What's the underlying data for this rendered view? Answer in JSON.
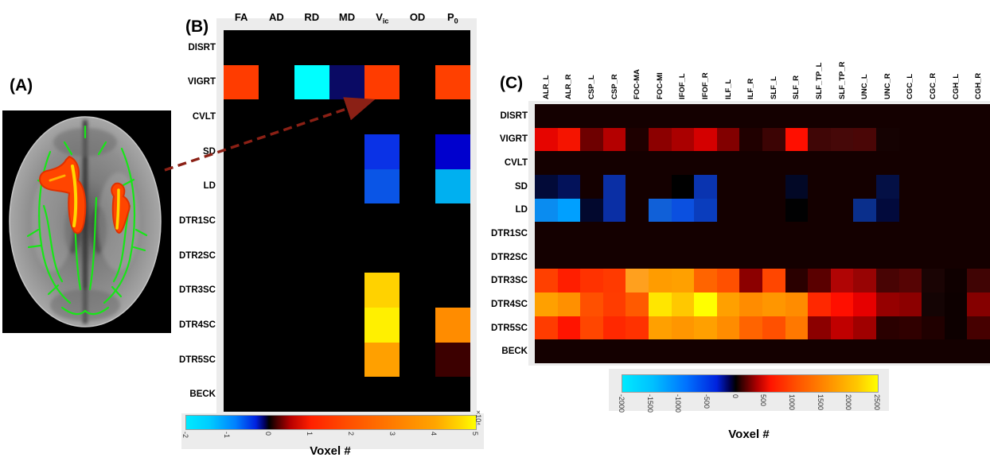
{
  "panels": {
    "a": {
      "label": "(A)"
    },
    "b": {
      "label": "(B)"
    },
    "c": {
      "label": "(C)"
    }
  },
  "annotation_arrow": {
    "color": "#8b2015",
    "style": "dashed"
  },
  "chart_data": [
    {
      "id": "B",
      "type": "heatmap",
      "columns": [
        "FA",
        "AD",
        "RD",
        "MD",
        "Vic",
        "OD",
        "P0"
      ],
      "column_labels_rich": [
        {
          "t": "FA"
        },
        {
          "t": "AD"
        },
        {
          "t": "RD"
        },
        {
          "t": "MD"
        },
        {
          "t": "V",
          "sub": "ic"
        },
        {
          "t": "OD"
        },
        {
          "t": "P",
          "sub": "0"
        }
      ],
      "rows": [
        "DISRT",
        "VIGRT",
        "CVLT",
        "SD",
        "LD",
        "DTR1SC",
        "DTR2SC",
        "DTR3SC",
        "DTR4SC",
        "DTR5SC",
        "BECK"
      ],
      "values_x1e4": [
        [
          0,
          0,
          0,
          0,
          0,
          0,
          0
        ],
        [
          2.2,
          0,
          -2.0,
          -0.6,
          2.2,
          0,
          2.2
        ],
        [
          0,
          0,
          0,
          0,
          0,
          0,
          0
        ],
        [
          0,
          0,
          0,
          0,
          -1.4,
          0,
          -1.1
        ],
        [
          0,
          0,
          0,
          0,
          -1.3,
          0,
          -1.8
        ],
        [
          0,
          0,
          0,
          0,
          0,
          0,
          0
        ],
        [
          0,
          0,
          0,
          0,
          0,
          0,
          0
        ],
        [
          0,
          0,
          0,
          0,
          4.6,
          0,
          0
        ],
        [
          0,
          0,
          0,
          0,
          4.9,
          0,
          3.5
        ],
        [
          0,
          0,
          0,
          0,
          3.8,
          0,
          0.3
        ],
        [
          0,
          0,
          0,
          0,
          0,
          0,
          0
        ]
      ],
      "cell_colors": [
        [
          "#000000",
          "#000000",
          "#000000",
          "#000000",
          "#000000",
          "#000000",
          "#000000"
        ],
        [
          "#ff3c00",
          "#000000",
          "#00ffff",
          "#0a0a64",
          "#ff3c00",
          "#000000",
          "#ff4000"
        ],
        [
          "#000000",
          "#000000",
          "#000000",
          "#000000",
          "#000000",
          "#000000",
          "#000000"
        ],
        [
          "#000000",
          "#000000",
          "#000000",
          "#000000",
          "#0a32e6",
          "#000000",
          "#0000cd"
        ],
        [
          "#000000",
          "#000000",
          "#000000",
          "#000000",
          "#0a55e6",
          "#000000",
          "#00b0f0"
        ],
        [
          "#000000",
          "#000000",
          "#000000",
          "#000000",
          "#000000",
          "#000000",
          "#000000"
        ],
        [
          "#000000",
          "#000000",
          "#000000",
          "#000000",
          "#000000",
          "#000000",
          "#000000"
        ],
        [
          "#000000",
          "#000000",
          "#000000",
          "#000000",
          "#ffd200",
          "#000000",
          "#000000"
        ],
        [
          "#000000",
          "#000000",
          "#000000",
          "#000000",
          "#fff000",
          "#000000",
          "#ff8c00"
        ],
        [
          "#000000",
          "#000000",
          "#000000",
          "#000000",
          "#ffa000",
          "#000000",
          "#3c0000"
        ],
        [
          "#000000",
          "#000000",
          "#000000",
          "#000000",
          "#000000",
          "#000000",
          "#000000"
        ]
      ],
      "colorbar": {
        "min": -2,
        "max": 5,
        "tick_values": [
          -2,
          -1,
          0,
          1,
          2,
          3,
          4,
          5
        ],
        "tick_labels": [
          "-2",
          "-1",
          "0",
          "1",
          "2",
          "3",
          "4",
          "5"
        ],
        "exp_label": "×10⁴",
        "axis_label": "Voxel #",
        "stops": [
          [
            0,
            "#00eaff"
          ],
          [
            0.08,
            "#00ccff"
          ],
          [
            0.17,
            "#0080ff"
          ],
          [
            0.24,
            "#0022e0"
          ],
          [
            0.27,
            "#000060"
          ],
          [
            0.286,
            "#000000"
          ],
          [
            0.31,
            "#400000"
          ],
          [
            0.36,
            "#b80000"
          ],
          [
            0.43,
            "#ff2000"
          ],
          [
            0.55,
            "#ff4c00"
          ],
          [
            0.7,
            "#ff7800"
          ],
          [
            0.86,
            "#ffa500"
          ],
          [
            0.94,
            "#ffd400"
          ],
          [
            1,
            "#ffff00"
          ]
        ]
      }
    },
    {
      "id": "C",
      "type": "heatmap",
      "columns": [
        "ALR_L",
        "ALR_R",
        "CSP_L",
        "CSP_R",
        "FOC-MA",
        "FOC-MI",
        "IFOF_L",
        "IFOF_R",
        "ILF_L",
        "ILF_R",
        "SLF_L",
        "SLF_R",
        "SLF_TP_L",
        "SLF_TP_R",
        "UNC_L",
        "UNC_R",
        "CGC_L",
        "CGC_R",
        "CGH_L",
        "CGH_R"
      ],
      "rows": [
        "DISRT",
        "VIGRT",
        "CVLT",
        "SD",
        "LD",
        "DTR1SC",
        "DTR2SC",
        "DTR3SC",
        "DTR4SC",
        "DTR5SC",
        "BECK"
      ],
      "values": [
        [
          0,
          0,
          0,
          0,
          0,
          0,
          0,
          0,
          0,
          0,
          0,
          0,
          0,
          0,
          0,
          0,
          0,
          0,
          0,
          0
        ],
        [
          850,
          950,
          350,
          600,
          60,
          450,
          550,
          750,
          400,
          70,
          150,
          1050,
          200,
          220,
          230,
          40,
          0,
          0,
          0,
          0
        ],
        [
          0,
          0,
          0,
          0,
          0,
          0,
          0,
          0,
          0,
          0,
          0,
          0,
          0,
          0,
          0,
          0,
          0,
          0,
          0,
          0
        ],
        [
          -250,
          -400,
          0,
          -750,
          0,
          0,
          -80,
          -780,
          0,
          0,
          0,
          -250,
          0,
          0,
          0,
          -350,
          0,
          0,
          0,
          0
        ],
        [
          -1550,
          -1700,
          -180,
          -750,
          0,
          -1150,
          -1250,
          -900,
          0,
          0,
          0,
          -30,
          0,
          0,
          -720,
          -250,
          0,
          0,
          0,
          0
        ],
        [
          0,
          0,
          0,
          0,
          0,
          0,
          0,
          0,
          0,
          0,
          0,
          0,
          0,
          0,
          0,
          0,
          0,
          0,
          0,
          0
        ],
        [
          0,
          0,
          0,
          0,
          0,
          0,
          0,
          0,
          0,
          0,
          0,
          0,
          0,
          0,
          0,
          0,
          0,
          0,
          0,
          0
        ],
        [
          1150,
          1300,
          1200,
          1180,
          1550,
          1530,
          1540,
          1350,
          1300,
          450,
          1280,
          130,
          280,
          560,
          490,
          230,
          270,
          80,
          40,
          200
        ],
        [
          1550,
          1500,
          1300,
          1180,
          1350,
          2250,
          1950,
          2450,
          1550,
          1450,
          1500,
          1450,
          1250,
          1050,
          950,
          480,
          450,
          60,
          40,
          420
        ],
        [
          1180,
          1000,
          1230,
          1100,
          1150,
          1550,
          1500,
          1550,
          1450,
          1350,
          1300,
          1400,
          450,
          620,
          500,
          130,
          150,
          100,
          40,
          220
        ],
        [
          0,
          0,
          0,
          0,
          0,
          0,
          0,
          0,
          0,
          0,
          0,
          0,
          0,
          0,
          0,
          0,
          0,
          0,
          0,
          0
        ]
      ],
      "cell_colors": [
        [
          "#140000",
          "#140000",
          "#140000",
          "#140000",
          "#140000",
          "#140000",
          "#140000",
          "#140000",
          "#140000",
          "#140000",
          "#140000",
          "#140000",
          "#140000",
          "#140000",
          "#140000",
          "#140000",
          "#140000",
          "#140000",
          "#140000",
          "#140000"
        ],
        [
          "#e60500",
          "#f51400",
          "#6e0000",
          "#b40000",
          "#1e0000",
          "#8c0000",
          "#aa0000",
          "#d40000",
          "#820000",
          "#200000",
          "#3c0404",
          "#ff0f00",
          "#400606",
          "#460808",
          "#4a0606",
          "#150202",
          "#140000",
          "#140000",
          "#140000",
          "#140000"
        ],
        [
          "#140000",
          "#140000",
          "#140000",
          "#140000",
          "#140000",
          "#140000",
          "#140000",
          "#140000",
          "#140000",
          "#140000",
          "#140000",
          "#140000",
          "#140000",
          "#140000",
          "#140000",
          "#140000",
          "#140000",
          "#140000",
          "#140000",
          "#140000"
        ],
        [
          "#020a38",
          "#03125a",
          "#140000",
          "#0a2fa5",
          "#140000",
          "#140000",
          "#000000",
          "#0a34b0",
          "#140000",
          "#140000",
          "#140000",
          "#020826",
          "#140000",
          "#140000",
          "#140000",
          "#041045",
          "#140000",
          "#140000",
          "#140000",
          "#140000"
        ],
        [
          "#0a8cf0",
          "#00a0ff",
          "#02082e",
          "#0a2fa5",
          "#140000",
          "#1060d8",
          "#0b50e0",
          "#0a3dbd",
          "#140000",
          "#140000",
          "#140000",
          "#010102",
          "#140000",
          "#140000",
          "#0a2f8c",
          "#020a3c",
          "#140000",
          "#140000",
          "#140000",
          "#140000"
        ],
        [
          "#140000",
          "#140000",
          "#140000",
          "#140000",
          "#140000",
          "#140000",
          "#140000",
          "#140000",
          "#140000",
          "#140000",
          "#140000",
          "#140000",
          "#140000",
          "#140000",
          "#140000",
          "#140000",
          "#140000",
          "#140000",
          "#140000",
          "#140000"
        ],
        [
          "#140000",
          "#140000",
          "#140000",
          "#140000",
          "#140000",
          "#140000",
          "#140000",
          "#140000",
          "#140000",
          "#140000",
          "#140000",
          "#140000",
          "#140000",
          "#140000",
          "#140000",
          "#140000",
          "#140000",
          "#140000",
          "#140000",
          "#140000"
        ],
        [
          "#ff4000",
          "#ff1e00",
          "#ff3200",
          "#ff3a00",
          "#ffa01e",
          "#ff9c00",
          "#ffa000",
          "#ff6400",
          "#ff5000",
          "#8c0000",
          "#ff4600",
          "#2a0000",
          "#5a0000",
          "#b00505",
          "#980404",
          "#480404",
          "#560404",
          "#1a0404",
          "#0f0000",
          "#400404"
        ],
        [
          "#ffa000",
          "#ff9000",
          "#ff5000",
          "#ff3c00",
          "#ff5a00",
          "#ffe600",
          "#ffc800",
          "#ffff00",
          "#ffa000",
          "#ff8c00",
          "#ff9600",
          "#ff8c00",
          "#ff2800",
          "#ff0f00",
          "#e60000",
          "#960000",
          "#8c0000",
          "#140404",
          "#0d0000",
          "#850000"
        ],
        [
          "#ff3c00",
          "#ff1400",
          "#ff4600",
          "#ff2800",
          "#ff3200",
          "#ffa000",
          "#ff9600",
          "#ffa000",
          "#ff8c00",
          "#ff6400",
          "#ff5000",
          "#ff7800",
          "#8c0000",
          "#c00000",
          "#a00000",
          "#2a0000",
          "#300000",
          "#200000",
          "#0d0000",
          "#460000"
        ],
        [
          "#140000",
          "#140000",
          "#140000",
          "#140000",
          "#140000",
          "#140000",
          "#140000",
          "#140000",
          "#140000",
          "#140000",
          "#140000",
          "#140000",
          "#140000",
          "#140000",
          "#140000",
          "#140000",
          "#140000",
          "#140000",
          "#140000",
          "#140000"
        ]
      ],
      "colorbar": {
        "min": -2000,
        "max": 2500,
        "tick_values": [
          -2000,
          -1500,
          -1000,
          -500,
          0,
          500,
          1000,
          1500,
          2000,
          2500
        ],
        "tick_labels": [
          "-2000",
          "-1500",
          "-1000",
          "-500",
          "0",
          "500",
          "1000",
          "1500",
          "2000",
          "2500"
        ],
        "exp_label": "",
        "axis_label": "Voxel #",
        "stops": [
          [
            0,
            "#00eaff"
          ],
          [
            0.12,
            "#00c0ff"
          ],
          [
            0.25,
            "#0072ff"
          ],
          [
            0.37,
            "#0022dd"
          ],
          [
            0.42,
            "#000050"
          ],
          [
            0.444,
            "#000000"
          ],
          [
            0.47,
            "#3c0000"
          ],
          [
            0.53,
            "#b40000"
          ],
          [
            0.58,
            "#ff1400"
          ],
          [
            0.68,
            "#ff5000"
          ],
          [
            0.8,
            "#ff8c00"
          ],
          [
            0.92,
            "#ffc800"
          ],
          [
            1,
            "#ffff00"
          ]
        ]
      }
    }
  ]
}
